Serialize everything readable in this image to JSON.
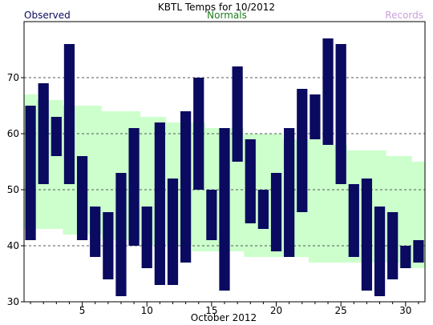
{
  "chart_data": {
    "type": "bar",
    "title": "KBTL Temps for 10/2012",
    "xlabel": "October 2012",
    "ylabel": "",
    "legend": [
      {
        "name": "Observed",
        "color": "#0a0a60"
      },
      {
        "name": "Normals",
        "color": "#1e7a1e"
      },
      {
        "name": "Records",
        "color": "#c9a0dc"
      }
    ],
    "xlim": [
      0.5,
      31.5
    ],
    "ylim": [
      30,
      80
    ],
    "x_ticks": [
      5,
      10,
      15,
      20,
      25,
      30
    ],
    "y_ticks": [
      30,
      40,
      50,
      60,
      70
    ],
    "gridlines_dashed": [
      40,
      50,
      60,
      70
    ],
    "colors": {
      "observed": "#0a0a60",
      "normals_band": "#ccffcc",
      "grid": "#555555",
      "records_text": "#c9a0dc",
      "normals_text": "#1e7a1e",
      "observed_text": "#0a0a60"
    },
    "observed": {
      "days": [
        1,
        2,
        3,
        4,
        5,
        6,
        7,
        8,
        9,
        10,
        11,
        12,
        13,
        14,
        15,
        16,
        17,
        18,
        19,
        20,
        21,
        22,
        23,
        24,
        25,
        26,
        27,
        28,
        29,
        30,
        31
      ],
      "high": [
        65,
        69,
        63,
        76,
        56,
        47,
        46,
        53,
        61,
        47,
        62,
        52,
        64,
        70,
        50,
        61,
        72,
        59,
        50,
        53,
        61,
        68,
        67,
        77,
        76,
        51,
        52,
        47,
        46,
        40,
        41
      ],
      "low": [
        41,
        51,
        56,
        51,
        41,
        38,
        34,
        31,
        40,
        36,
        33,
        33,
        37,
        50,
        41,
        32,
        55,
        44,
        43,
        39,
        38,
        46,
        59,
        58,
        51,
        38,
        32,
        31,
        34,
        36,
        37
      ]
    },
    "normals": {
      "days": [
        1,
        2,
        3,
        4,
        5,
        6,
        7,
        8,
        9,
        10,
        11,
        12,
        13,
        14,
        15,
        16,
        17,
        18,
        19,
        20,
        21,
        22,
        23,
        24,
        25,
        26,
        27,
        28,
        29,
        30,
        31
      ],
      "high": [
        67,
        66,
        66,
        65,
        65,
        65,
        64,
        64,
        64,
        63,
        63,
        62,
        62,
        62,
        61,
        61,
        61,
        60,
        60,
        60,
        59,
        59,
        59,
        58,
        58,
        57,
        57,
        57,
        56,
        56,
        55
      ],
      "low": [
        43,
        43,
        43,
        42,
        42,
        42,
        41,
        41,
        41,
        40,
        40,
        40,
        40,
        39,
        39,
        39,
        39,
        38,
        38,
        38,
        38,
        38,
        37,
        37,
        37,
        37,
        37,
        37,
        37,
        36,
        36
      ]
    }
  }
}
